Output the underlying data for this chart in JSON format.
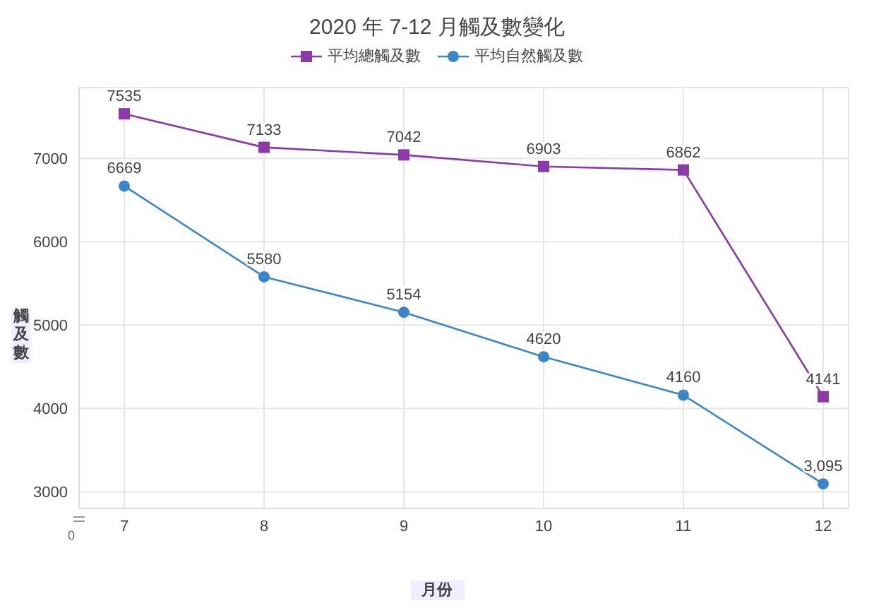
{
  "chart_data": {
    "type": "line",
    "title": "2020 年 7-12 月觸及數變化",
    "xlabel": "月份",
    "ylabel": "觸及數",
    "categories": [
      "7",
      "8",
      "9",
      "10",
      "11",
      "12"
    ],
    "series": [
      {
        "name": "平均總觸及數",
        "color": "#8b3aa8",
        "marker": "square",
        "values": [
          7535,
          7133,
          7042,
          6903,
          6862,
          4141
        ],
        "value_labels": [
          "7535",
          "7133",
          "7042",
          "6903",
          "6862",
          "4141"
        ]
      },
      {
        "name": "平均自然觸及數",
        "color": "#3a86c8",
        "marker": "circle",
        "values": [
          6669,
          5580,
          5154,
          4620,
          4160,
          3095
        ],
        "value_labels": [
          "6669",
          "5580",
          "5154",
          "4620",
          "4160",
          "3,095"
        ]
      }
    ],
    "ylim": [
      2800,
      7850
    ],
    "yticks": [
      3000,
      4000,
      5000,
      6000,
      7000
    ],
    "grid": true,
    "legend": "top",
    "annotations": [
      "0"
    ]
  }
}
